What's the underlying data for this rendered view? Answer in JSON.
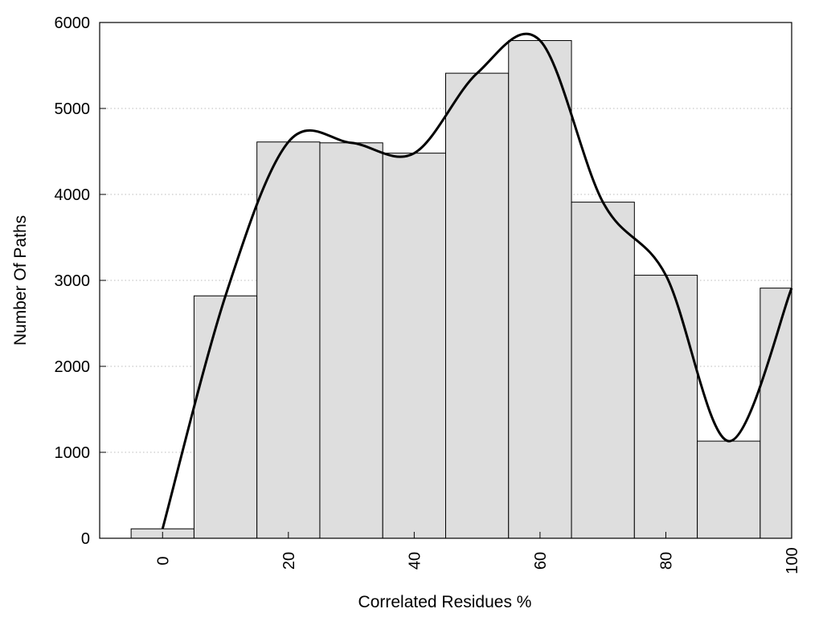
{
  "chart_data": {
    "type": "bar",
    "title": "",
    "xlabel": "Correlated Residues %",
    "ylabel": "Number Of Paths",
    "xlim": [
      -10,
      100
    ],
    "ylim": [
      0,
      6000
    ],
    "x_ticks": [
      0,
      20,
      40,
      60,
      80,
      100
    ],
    "y_ticks": [
      0,
      1000,
      2000,
      3000,
      4000,
      5000,
      6000
    ],
    "grid": "horizontal dotted",
    "bar_width": 10,
    "bars": {
      "x": [
        0,
        10,
        20,
        30,
        40,
        50,
        60,
        70,
        80,
        90,
        100
      ],
      "values": [
        110,
        2820,
        4610,
        4600,
        4480,
        5410,
        5790,
        3910,
        3060,
        1130,
        2910
      ]
    },
    "curve": {
      "x": [
        0,
        10,
        20,
        30,
        40,
        50,
        60,
        70,
        80,
        90,
        100
      ],
      "y": [
        110,
        2820,
        4610,
        4600,
        4480,
        5410,
        5790,
        3910,
        3060,
        1130,
        2910
      ]
    },
    "colors": {
      "bar_fill": "#dedede",
      "bar_stroke": "#000000",
      "curve": "#000000",
      "grid": "#bbbbbb"
    }
  }
}
